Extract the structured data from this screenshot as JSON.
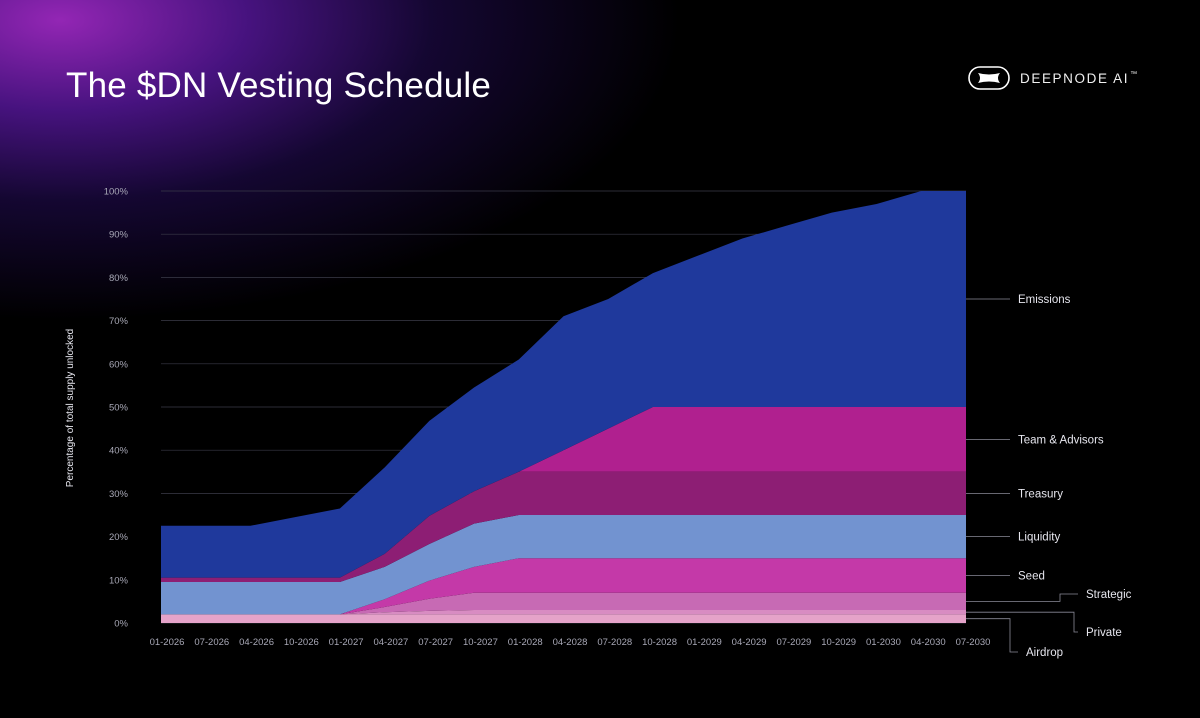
{
  "header": {
    "title": "The $DN Vesting Schedule",
    "brand": "DEEPNODE AI",
    "brand_tm": "™"
  },
  "chart_data": {
    "type": "area",
    "stacked": true,
    "title": "The $DN Vesting Schedule",
    "ylabel": "Percentage of total supply unlocked",
    "xlabel": "",
    "ylim": [
      0,
      100
    ],
    "yticks": [
      "0%",
      "10%",
      "20%",
      "30%",
      "40%",
      "50%",
      "60%",
      "70%",
      "80%",
      "90%",
      "100%"
    ],
    "x_tick_labels": [
      "01-2026",
      "07-2026",
      "04-2026",
      "10-2026",
      "01-2027",
      "04-2027",
      "07-2027",
      "10-2027",
      "01-2028",
      "04-2028",
      "07-2028",
      "10-2028",
      "01-2029",
      "04-2029",
      "07-2029",
      "10-2029",
      "01-2030",
      "04-2030",
      "07-2030"
    ],
    "x": [
      0,
      1,
      2,
      3,
      4,
      5,
      6,
      7,
      8,
      9,
      10,
      11,
      12,
      13,
      14,
      15,
      16,
      17,
      18
    ],
    "grid": true,
    "legend": "right",
    "series": [
      {
        "name": "Airdrop",
        "color": "#e5a3c9",
        "values": [
          2,
          2,
          2,
          2,
          2,
          2,
          2,
          2,
          2,
          2,
          2,
          2,
          2,
          2,
          2,
          2,
          2,
          2,
          2
        ]
      },
      {
        "name": "Private",
        "color": "#d88cc2",
        "values": [
          0,
          0,
          0,
          0,
          0,
          0.5,
          0.8,
          1,
          1,
          1,
          1,
          1,
          1,
          1,
          1,
          1,
          1,
          1,
          1
        ]
      },
      {
        "name": "Strategic",
        "color": "#c76ab4",
        "values": [
          0,
          0,
          0,
          0,
          0,
          1.2,
          2.8,
          4,
          4,
          4,
          4,
          4,
          4,
          4,
          4,
          4,
          4,
          4,
          4
        ]
      },
      {
        "name": "Seed",
        "color": "#c439a8",
        "values": [
          0,
          0,
          0,
          0,
          0,
          1.8,
          4.2,
          6,
          8,
          8,
          8,
          8,
          8,
          8,
          8,
          8,
          8,
          8,
          8
        ]
      },
      {
        "name": "Liquidity",
        "color": "#7293d0",
        "values": [
          7.5,
          7.5,
          7.5,
          7.5,
          7.5,
          7.5,
          8.5,
          10,
          10,
          10,
          10,
          10,
          10,
          10,
          10,
          10,
          10,
          10,
          10
        ]
      },
      {
        "name": "Treasury",
        "color": "#8d1e74",
        "values": [
          1,
          1,
          1,
          1,
          1,
          3,
          6.5,
          7.5,
          10,
          10,
          10,
          10,
          10,
          10,
          10,
          10,
          10,
          10,
          10
        ]
      },
      {
        "name": "Team & Advisors",
        "color": "#b0208f",
        "values": [
          0,
          0,
          0,
          0,
          0,
          0,
          0,
          0,
          0,
          5,
          10,
          15,
          15,
          15,
          15,
          15,
          15,
          15,
          15
        ]
      },
      {
        "name": "Emissions",
        "color": "#1f399c",
        "values": [
          12,
          12,
          12,
          14,
          16,
          20,
          22,
          24,
          26,
          31,
          30,
          31,
          35,
          39,
          42,
          45,
          47,
          50,
          50
        ]
      }
    ]
  },
  "colors": {
    "background": "#000000",
    "glow": "#9b28be",
    "grid": "#3a3a48",
    "tick_text": "#a8a8b6"
  }
}
